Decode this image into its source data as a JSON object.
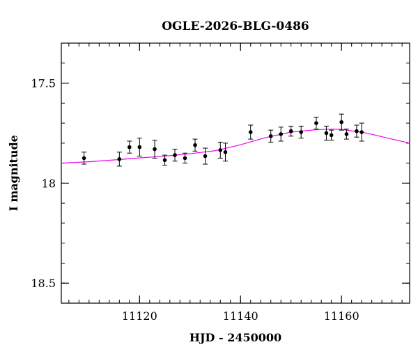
{
  "chart_data": {
    "type": "scatter",
    "title": "OGLE-2026-BLG-0486",
    "xlabel": "HJD - 2450000",
    "ylabel": "I magnitude",
    "xlim": [
      11104.5,
      11173.5
    ],
    "ylim": [
      18.6,
      17.3
    ],
    "y_inverted": true,
    "x_ticks": [
      11120,
      11140,
      11160
    ],
    "y_ticks": [
      17.5,
      18,
      18.5
    ],
    "x_tick_labels": [
      "11120",
      "11140",
      "11160"
    ],
    "y_tick_labels": [
      "17.5",
      "18",
      "18.5"
    ],
    "grid": false,
    "points": [
      {
        "x": 11109.0,
        "y": 17.875,
        "err": 0.03
      },
      {
        "x": 11116.0,
        "y": 17.88,
        "err": 0.035
      },
      {
        "x": 11118.0,
        "y": 17.82,
        "err": 0.03
      },
      {
        "x": 11120.0,
        "y": 17.82,
        "err": 0.045
      },
      {
        "x": 11123.0,
        "y": 17.83,
        "err": 0.045
      },
      {
        "x": 11125.0,
        "y": 17.885,
        "err": 0.025
      },
      {
        "x": 11127.0,
        "y": 17.86,
        "err": 0.03
      },
      {
        "x": 11129.0,
        "y": 17.875,
        "err": 0.025
      },
      {
        "x": 11131.0,
        "y": 17.81,
        "err": 0.03
      },
      {
        "x": 11133.0,
        "y": 17.865,
        "err": 0.04
      },
      {
        "x": 11136.0,
        "y": 17.835,
        "err": 0.04
      },
      {
        "x": 11137.0,
        "y": 17.845,
        "err": 0.045
      },
      {
        "x": 11142.0,
        "y": 17.745,
        "err": 0.035
      },
      {
        "x": 11146.0,
        "y": 17.765,
        "err": 0.03
      },
      {
        "x": 11148.0,
        "y": 17.755,
        "err": 0.035
      },
      {
        "x": 11150.0,
        "y": 17.74,
        "err": 0.025
      },
      {
        "x": 11152.0,
        "y": 17.745,
        "err": 0.03
      },
      {
        "x": 11155.0,
        "y": 17.7,
        "err": 0.03
      },
      {
        "x": 11157.0,
        "y": 17.75,
        "err": 0.035
      },
      {
        "x": 11158.0,
        "y": 17.76,
        "err": 0.025
      },
      {
        "x": 11160.0,
        "y": 17.695,
        "err": 0.04
      },
      {
        "x": 11161.0,
        "y": 17.755,
        "err": 0.025
      },
      {
        "x": 11163.0,
        "y": 17.74,
        "err": 0.03
      },
      {
        "x": 11164.0,
        "y": 17.745,
        "err": 0.045
      }
    ],
    "model": {
      "x": [
        11104.5,
        11110,
        11115,
        11120,
        11125,
        11130,
        11135,
        11140,
        11145,
        11150,
        11155,
        11158,
        11160,
        11165,
        11170,
        11173.5
      ],
      "y": [
        17.9,
        17.893,
        17.884,
        17.874,
        17.865,
        17.853,
        17.838,
        17.808,
        17.772,
        17.745,
        17.733,
        17.73,
        17.731,
        17.75,
        17.78,
        17.8
      ]
    },
    "colors": {
      "model": "#ee00ee",
      "points": "#000000",
      "axes": "#000000"
    }
  }
}
